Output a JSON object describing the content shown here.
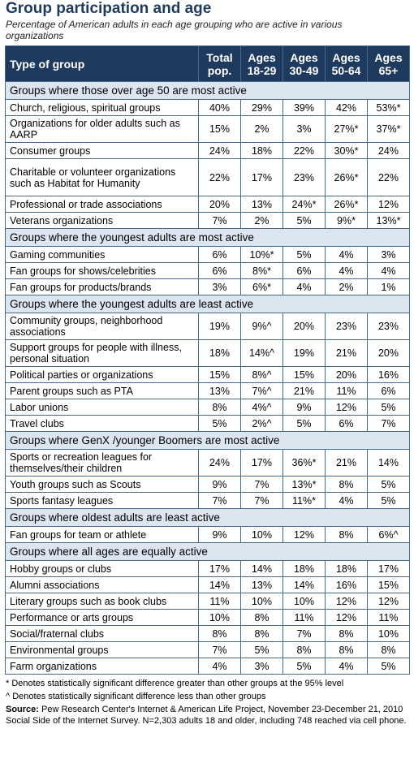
{
  "title": "Group participation and age",
  "subtitle": "Percentage of American adults in each age grouping who are active in various organizations",
  "headers": [
    "Type of group",
    "Total pop.",
    "Ages 18-29",
    "Ages 30-49",
    "Ages 50-64",
    "Ages 65+"
  ],
  "sections": [
    {
      "heading": "Groups where those over age 50 are most active",
      "rows": [
        {
          "label": "Church, religious, spiritual groups",
          "values": [
            "40%",
            "29%",
            "39%",
            "42%",
            "53%*"
          ]
        },
        {
          "label": "Organizations for older adults such as AARP",
          "values": [
            "15%",
            "2%",
            "3%",
            "27%*",
            "37%*"
          ]
        },
        {
          "label": "Consumer groups",
          "values": [
            "24%",
            "18%",
            "22%",
            "30%*",
            "24%"
          ]
        },
        {
          "label": "Charitable or volunteer organizations such as Habitat for Humanity",
          "values": [
            "22%",
            "17%",
            "23%",
            "26%*",
            "22%"
          ]
        },
        {
          "label": "Professional or trade associations",
          "values": [
            "20%",
            "13%",
            "24%*",
            "26%*",
            "12%"
          ]
        },
        {
          "label": "Veterans organizations",
          "values": [
            "7%",
            "2%",
            "5%",
            "9%*",
            "13%*"
          ]
        }
      ]
    },
    {
      "heading": "Groups where the youngest adults are most active",
      "rows": [
        {
          "label": "Gaming communities",
          "values": [
            "6%",
            "10%*",
            "5%",
            "4%",
            "3%"
          ]
        },
        {
          "label": "Fan groups for shows/celebrities",
          "values": [
            "6%",
            "8%*",
            "6%",
            "4%",
            "4%"
          ]
        },
        {
          "label": "Fan groups for products/brands",
          "values": [
            "3%",
            "6%*",
            "4%",
            "2%",
            "1%"
          ]
        }
      ]
    },
    {
      "heading": "Groups where the youngest adults are least active",
      "rows": [
        {
          "label": "Community groups, neighborhood associations",
          "values": [
            "19%",
            "9%^",
            "20%",
            "23%",
            "23%"
          ]
        },
        {
          "label": "Support groups for people with illness, personal situation",
          "values": [
            "18%",
            "14%^",
            "19%",
            "21%",
            "20%"
          ]
        },
        {
          "label": "Political parties or organizations",
          "values": [
            "15%",
            "8%^",
            "15%",
            "20%",
            "16%"
          ]
        },
        {
          "label": "Parent groups such as PTA",
          "values": [
            "13%",
            "7%^",
            "21%",
            "11%",
            "6%"
          ]
        },
        {
          "label": "Labor unions",
          "values": [
            "8%",
            "4%^",
            "9%",
            "12%",
            "5%"
          ]
        },
        {
          "label": "Travel clubs",
          "values": [
            "5%",
            "2%^",
            "5%",
            "6%",
            "7%"
          ]
        }
      ]
    },
    {
      "heading": "Groups where GenX /younger Boomers are most active",
      "rows": [
        {
          "label": "Sports or recreation leagues for themselves/their children",
          "values": [
            "24%",
            "17%",
            "36%*",
            "21%",
            "14%"
          ]
        },
        {
          "label": "Youth groups such as Scouts",
          "values": [
            "9%",
            "7%",
            "13%*",
            "8%",
            "5%"
          ]
        },
        {
          "label": "Sports fantasy leagues",
          "values": [
            "7%",
            "7%",
            "11%*",
            "4%",
            "5%"
          ]
        }
      ]
    },
    {
      "heading": "Groups where oldest adults are least active",
      "rows": [
        {
          "label": "Fan groups for team or athlete",
          "values": [
            "9%",
            "10%",
            "12%",
            "8%",
            "6%^"
          ]
        }
      ]
    },
    {
      "heading": "Groups where all ages are equally active",
      "rows": [
        {
          "label": "Hobby groups or clubs",
          "values": [
            "17%",
            "14%",
            "18%",
            "18%",
            "17%"
          ]
        },
        {
          "label": "Alumni associations",
          "values": [
            "14%",
            "13%",
            "14%",
            "16%",
            "15%"
          ]
        },
        {
          "label": "Literary groups such as book clubs",
          "values": [
            "11%",
            "10%",
            "10%",
            "12%",
            "12%"
          ]
        },
        {
          "label": "Performance or arts groups",
          "values": [
            "10%",
            "8%",
            "11%",
            "12%",
            "11%"
          ]
        },
        {
          "label": "Social/fraternal clubs",
          "values": [
            "8%",
            "8%",
            "7%",
            "8%",
            "10%"
          ]
        },
        {
          "label": "Environmental groups",
          "values": [
            "7%",
            "5%",
            "8%",
            "8%",
            "8%"
          ]
        },
        {
          "label": "Farm organizations",
          "values": [
            "4%",
            "3%",
            "5%",
            "4%",
            "5%"
          ]
        }
      ]
    }
  ],
  "notes": {
    "star": "* Denotes statistically significant difference greater than other groups at the 95% level",
    "caret": "^ Denotes statistically significant difference less than other groups",
    "source_label": "Source:",
    "source_text": "Pew Research Center's Internet & American Life Project, November 23-December 21, 2010 Social Side of the Internet Survey. N=2,303 adults 18 and older, including 748 reached via cell phone."
  },
  "colors": {
    "header_bg": "#1f3a5f",
    "section_bg": "#dce6f1",
    "title": "#1f3a5f"
  }
}
